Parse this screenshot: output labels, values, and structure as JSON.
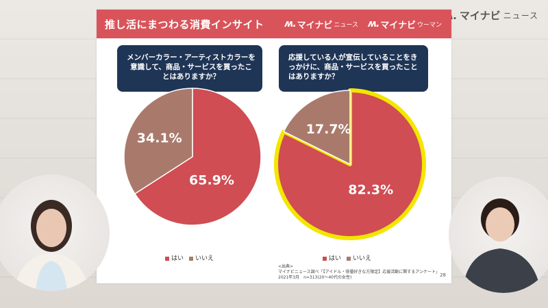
{
  "brand": {
    "main": "マイナビ",
    "sub": "ニュース",
    "mark": "ʍ."
  },
  "slide": {
    "title": "推し活にまつわる消費インサイト",
    "logos": [
      {
        "mark": "ʍ.",
        "main": "マイナビ",
        "sub": "ニュース"
      },
      {
        "mark": "ʍ.",
        "main": "マイナビ",
        "sub": "ウーマン"
      }
    ],
    "questions": [
      "メンバーカラー・アーティストカラーを意識して、商品・サービスを買ったことはありますか？",
      "応援している人が宣伝していることをきっかけに、商品・サービスを買ったことはありますか？"
    ],
    "legend": {
      "yes": "はい",
      "no": "いいえ"
    },
    "source": {
      "label": "<出典>",
      "line1": "マイナビニュース調べ「【アイドル・俳優好きな方限定】応援活動に関するアンケート」",
      "line2": "2021年3月　n=313(20～40代の女性)"
    },
    "page_number": "28"
  },
  "colors": {
    "header": "#d9545a",
    "question_bg": "#1f3556",
    "yes": "#cf4d53",
    "no": "#a97a6c",
    "highlight": "#f3e600"
  },
  "chart_data": [
    {
      "type": "pie",
      "categories": [
        "はい",
        "いいえ"
      ],
      "values": [
        65.9,
        34.1
      ],
      "labels": [
        "65.9%",
        "34.1%"
      ]
    },
    {
      "type": "pie",
      "categories": [
        "はい",
        "いいえ"
      ],
      "values": [
        82.3,
        17.7
      ],
      "labels": [
        "82.3%",
        "17.7%"
      ]
    }
  ]
}
